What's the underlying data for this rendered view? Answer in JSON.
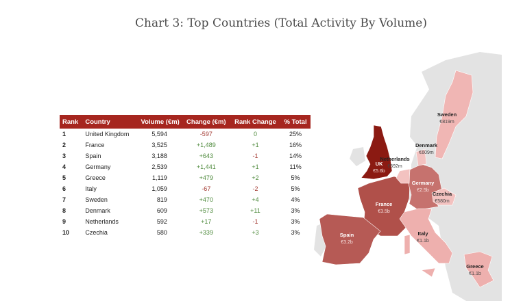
{
  "title": "Chart 3: Top Countries (Total Activity By Volume)",
  "chart_data": {
    "type": "table",
    "title": "Chart 3: Top Countries (Total Activity By Volume)",
    "columns": [
      "Rank",
      "Country",
      "Volume (€m)",
      "Change (€m)",
      "Rank Change",
      "% Total"
    ],
    "rows": [
      [
        "1",
        "United Kingdom",
        "5,594",
        "-597",
        "0",
        "25%"
      ],
      [
        "2",
        "France",
        "3,525",
        "+1,489",
        "+1",
        "16%"
      ],
      [
        "3",
        "Spain",
        "3,188",
        "+643",
        "-1",
        "14%"
      ],
      [
        "4",
        "Germany",
        "2,539",
        "+1,441",
        "+1",
        "11%"
      ],
      [
        "5",
        "Greece",
        "1,119",
        "+479",
        "+2",
        "5%"
      ],
      [
        "6",
        "Italy",
        "1,059",
        "-67",
        "-2",
        "5%"
      ],
      [
        "7",
        "Sweden",
        "819",
        "+470",
        "+4",
        "4%"
      ],
      [
        "8",
        "Denmark",
        "609",
        "+573",
        "+11",
        "3%"
      ],
      [
        "9",
        "Netherlands",
        "592",
        "+17",
        "-1",
        "3%"
      ],
      [
        "10",
        "Czechia",
        "580",
        "+339",
        "+3",
        "3%"
      ]
    ],
    "map_labels": [
      {
        "name": "UK",
        "value": "€5.6b",
        "fill": "#8b1a12"
      },
      {
        "name": "France",
        "value": "€3.5b",
        "fill": "#b0504a"
      },
      {
        "name": "Spain",
        "value": "€3.2b",
        "fill": "#b65a55"
      },
      {
        "name": "Germany",
        "value": "€2.5b",
        "fill": "#c6726e"
      },
      {
        "name": "Sweden",
        "value": "€819m",
        "fill": "#f0b6b4"
      },
      {
        "name": "Denmark",
        "value": "€609m",
        "fill": "#f3c2c0"
      },
      {
        "name": "Netherlands",
        "value": "€592m",
        "fill": "#f3c2c0"
      },
      {
        "name": "Czechia",
        "value": "€580m",
        "fill": "#f3c2c0"
      },
      {
        "name": "Italy",
        "value": "€1.1b",
        "fill": "#eeb0ae"
      },
      {
        "name": "Greece",
        "value": "€1.1b",
        "fill": "#eeb0ae"
      }
    ],
    "colors": {
      "header": "#a6261f",
      "negative": "#a33a32",
      "positive": "#4e8a3c",
      "other_land": "#e3e3e3"
    }
  }
}
